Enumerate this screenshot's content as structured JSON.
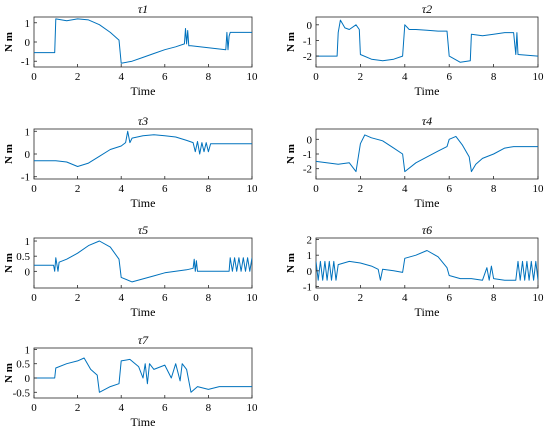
{
  "chart_data": [
    {
      "type": "line",
      "title": "τ1",
      "xlabel": "Time",
      "ylabel": "N m",
      "xlim": [
        0,
        10
      ],
      "ylim": [
        -1.3,
        1.3
      ],
      "xticks": [
        "0",
        "2",
        "4",
        "6",
        "8",
        "10"
      ],
      "yticks": [
        "-1",
        "0",
        "1"
      ],
      "series": [
        {
          "color": "#0072BD",
          "values": [
            [
              0,
              -0.55
            ],
            [
              0.95,
              -0.55
            ],
            [
              1.0,
              1.2
            ],
            [
              1.5,
              1.1
            ],
            [
              2.0,
              1.2
            ],
            [
              2.5,
              1.15
            ],
            [
              3.0,
              0.9
            ],
            [
              3.5,
              0.5
            ],
            [
              3.9,
              0.1
            ],
            [
              4.0,
              -1.1
            ],
            [
              4.5,
              -1.0
            ],
            [
              5.0,
              -0.8
            ],
            [
              5.5,
              -0.6
            ],
            [
              6.0,
              -0.4
            ],
            [
              6.5,
              -0.25
            ],
            [
              6.9,
              -0.1
            ],
            [
              6.95,
              0.7
            ],
            [
              7.0,
              -0.1
            ],
            [
              7.05,
              0.6
            ],
            [
              7.1,
              -0.2
            ],
            [
              7.2,
              -0.2
            ],
            [
              8.0,
              -0.3
            ],
            [
              8.8,
              -0.4
            ],
            [
              8.85,
              0.5
            ],
            [
              8.9,
              -0.4
            ],
            [
              8.95,
              0.3
            ],
            [
              9.0,
              0.5
            ],
            [
              10,
              0.5
            ]
          ]
        }
      ]
    },
    {
      "type": "line",
      "title": "τ2",
      "xlabel": "Time",
      "ylabel": "N m",
      "xlim": [
        0,
        10
      ],
      "ylim": [
        -2.7,
        0.5
      ],
      "xticks": [
        "0",
        "2",
        "4",
        "6",
        "8",
        "10"
      ],
      "yticks": [
        "-2",
        "-1",
        "0"
      ],
      "series": [
        {
          "color": "#0072BD",
          "values": [
            [
              0,
              -2.0
            ],
            [
              0.95,
              -2.0
            ],
            [
              1.0,
              -0.5
            ],
            [
              1.1,
              0.3
            ],
            [
              1.3,
              -0.2
            ],
            [
              1.5,
              -0.3
            ],
            [
              1.8,
              0.0
            ],
            [
              1.95,
              -0.3
            ],
            [
              2.0,
              -1.9
            ],
            [
              2.5,
              -2.2
            ],
            [
              3.0,
              -2.3
            ],
            [
              3.5,
              -2.2
            ],
            [
              3.9,
              -2.0
            ],
            [
              4.0,
              0.0
            ],
            [
              4.2,
              -0.3
            ],
            [
              4.5,
              -0.3
            ],
            [
              5.0,
              -0.35
            ],
            [
              5.5,
              -0.4
            ],
            [
              5.9,
              -0.4
            ],
            [
              6.0,
              -2.0
            ],
            [
              6.5,
              -2.4
            ],
            [
              6.95,
              -2.3
            ],
            [
              7.0,
              -0.6
            ],
            [
              7.5,
              -0.7
            ],
            [
              8.0,
              -0.6
            ],
            [
              8.5,
              -0.5
            ],
            [
              8.9,
              -0.5
            ],
            [
              9.0,
              -1.9
            ],
            [
              9.05,
              -0.5
            ],
            [
              9.1,
              -1.9
            ],
            [
              10,
              -2.0
            ]
          ]
        }
      ]
    },
    {
      "type": "line",
      "title": "τ3",
      "xlabel": "Time",
      "ylabel": "N m",
      "xlim": [
        0,
        10
      ],
      "ylim": [
        -1.1,
        1.1
      ],
      "xticks": [
        "0",
        "2",
        "4",
        "6",
        "8",
        "10"
      ],
      "yticks": [
        "-1",
        "0",
        "1"
      ],
      "series": [
        {
          "color": "#0072BD",
          "values": [
            [
              0,
              -0.3
            ],
            [
              1.0,
              -0.3
            ],
            [
              1.5,
              -0.35
            ],
            [
              2.0,
              -0.55
            ],
            [
              2.5,
              -0.4
            ],
            [
              3.0,
              -0.1
            ],
            [
              3.5,
              0.2
            ],
            [
              4.0,
              0.35
            ],
            [
              4.2,
              0.5
            ],
            [
              4.3,
              1.0
            ],
            [
              4.4,
              0.5
            ],
            [
              4.5,
              0.7
            ],
            [
              5.0,
              0.8
            ],
            [
              5.5,
              0.85
            ],
            [
              6.0,
              0.8
            ],
            [
              6.5,
              0.75
            ],
            [
              7.0,
              0.6
            ],
            [
              7.3,
              0.5
            ],
            [
              7.4,
              0.1
            ],
            [
              7.5,
              0.55
            ],
            [
              7.6,
              0.0
            ],
            [
              7.7,
              0.5
            ],
            [
              7.8,
              0.1
            ],
            [
              7.9,
              0.5
            ],
            [
              8.0,
              0.1
            ],
            [
              8.1,
              0.45
            ],
            [
              8.5,
              0.45
            ],
            [
              10,
              0.45
            ]
          ]
        }
      ]
    },
    {
      "type": "line",
      "title": "τ4",
      "xlabel": "Time",
      "ylabel": "N m",
      "xlim": [
        0,
        10
      ],
      "ylim": [
        -2.7,
        0.7
      ],
      "xticks": [
        "0",
        "2",
        "4",
        "6",
        "8",
        "10"
      ],
      "yticks": [
        "-2",
        "-1",
        "0"
      ],
      "series": [
        {
          "color": "#0072BD",
          "values": [
            [
              0,
              -1.5
            ],
            [
              1.0,
              -1.7
            ],
            [
              1.5,
              -1.6
            ],
            [
              1.8,
              -2.2
            ],
            [
              2.0,
              -0.3
            ],
            [
              2.2,
              0.3
            ],
            [
              2.5,
              0.1
            ],
            [
              3.0,
              -0.1
            ],
            [
              3.5,
              -0.6
            ],
            [
              3.9,
              -1.0
            ],
            [
              4.0,
              -2.2
            ],
            [
              4.5,
              -1.6
            ],
            [
              5.0,
              -1.2
            ],
            [
              5.5,
              -0.8
            ],
            [
              5.9,
              -0.5
            ],
            [
              6.0,
              0.0
            ],
            [
              6.3,
              0.2
            ],
            [
              6.6,
              -0.4
            ],
            [
              6.9,
              -1.2
            ],
            [
              7.0,
              -2.2
            ],
            [
              7.2,
              -1.7
            ],
            [
              7.5,
              -1.3
            ],
            [
              8.0,
              -1.0
            ],
            [
              8.5,
              -0.6
            ],
            [
              8.9,
              -0.5
            ],
            [
              9.0,
              -0.5
            ],
            [
              10,
              -0.5
            ]
          ]
        }
      ]
    },
    {
      "type": "line",
      "title": "τ5",
      "xlabel": "Time",
      "ylabel": "N m",
      "xlim": [
        0,
        10
      ],
      "ylim": [
        -0.55,
        1.1
      ],
      "xticks": [
        "0",
        "2",
        "4",
        "6",
        "8",
        "10"
      ],
      "yticks": [
        "0",
        "0.5",
        "1"
      ],
      "series": [
        {
          "color": "#0072BD",
          "values": [
            [
              0,
              0.2
            ],
            [
              0.9,
              0.2
            ],
            [
              0.95,
              0.0
            ],
            [
              1.0,
              0.45
            ],
            [
              1.1,
              0.0
            ],
            [
              1.15,
              0.3
            ],
            [
              1.5,
              0.4
            ],
            [
              2.0,
              0.6
            ],
            [
              2.5,
              0.85
            ],
            [
              3.0,
              1.0
            ],
            [
              3.5,
              0.8
            ],
            [
              3.9,
              0.4
            ],
            [
              4.0,
              -0.2
            ],
            [
              4.5,
              -0.35
            ],
            [
              5.0,
              -0.25
            ],
            [
              5.5,
              -0.15
            ],
            [
              6.0,
              -0.05
            ],
            [
              6.5,
              0.0
            ],
            [
              7.0,
              0.05
            ],
            [
              7.3,
              0.1
            ],
            [
              7.35,
              0.4
            ],
            [
              7.4,
              0.0
            ],
            [
              7.45,
              0.35
            ],
            [
              7.5,
              0.0
            ],
            [
              8.0,
              0.0
            ],
            [
              8.5,
              0.0
            ],
            [
              8.95,
              0.0
            ],
            [
              9.0,
              0.45
            ],
            [
              9.1,
              0.0
            ],
            [
              9.2,
              0.45
            ],
            [
              9.3,
              0.0
            ],
            [
              9.4,
              0.45
            ],
            [
              9.5,
              0.0
            ],
            [
              9.6,
              0.45
            ],
            [
              9.7,
              0.0
            ],
            [
              9.8,
              0.45
            ],
            [
              9.9,
              0.0
            ],
            [
              10,
              0.45
            ]
          ]
        }
      ]
    },
    {
      "type": "line",
      "title": "τ6",
      "xlabel": "Time",
      "ylabel": "N m",
      "xlim": [
        0,
        10
      ],
      "ylim": [
        -1.1,
        2.1
      ],
      "xticks": [
        "0",
        "2",
        "4",
        "6",
        "8",
        "10"
      ],
      "yticks": [
        "-1",
        "0",
        "1",
        "2"
      ],
      "series": [
        {
          "color": "#0072BD",
          "values": [
            [
              0,
              0.6
            ],
            [
              0.1,
              -0.6
            ],
            [
              0.2,
              0.6
            ],
            [
              0.3,
              -0.6
            ],
            [
              0.4,
              0.6
            ],
            [
              0.5,
              -0.6
            ],
            [
              0.6,
              0.6
            ],
            [
              0.7,
              -0.6
            ],
            [
              0.8,
              0.6
            ],
            [
              0.9,
              -0.6
            ],
            [
              1.0,
              0.4
            ],
            [
              1.5,
              0.6
            ],
            [
              2.0,
              0.5
            ],
            [
              2.5,
              0.3
            ],
            [
              2.8,
              0.1
            ],
            [
              2.9,
              -0.6
            ],
            [
              3.0,
              0.1
            ],
            [
              3.5,
              0.0
            ],
            [
              3.9,
              -0.1
            ],
            [
              4.0,
              0.8
            ],
            [
              4.5,
              1.0
            ],
            [
              5.0,
              1.3
            ],
            [
              5.5,
              0.9
            ],
            [
              5.9,
              0.2
            ],
            [
              6.0,
              -0.3
            ],
            [
              6.5,
              -0.5
            ],
            [
              7.0,
              -0.5
            ],
            [
              7.5,
              -0.6
            ],
            [
              7.7,
              0.2
            ],
            [
              7.8,
              -0.6
            ],
            [
              7.9,
              0.3
            ],
            [
              8.0,
              -0.5
            ],
            [
              8.5,
              -0.6
            ],
            [
              9.0,
              -0.6
            ],
            [
              9.1,
              0.6
            ],
            [
              9.2,
              -0.6
            ],
            [
              9.3,
              0.6
            ],
            [
              9.4,
              -0.6
            ],
            [
              9.5,
              0.6
            ],
            [
              9.6,
              -0.6
            ],
            [
              9.7,
              0.6
            ],
            [
              9.8,
              -0.6
            ],
            [
              9.9,
              0.6
            ],
            [
              10,
              -0.6
            ]
          ]
        }
      ]
    },
    {
      "type": "line",
      "title": "τ7",
      "xlabel": "Time",
      "ylabel": "N m",
      "xlim": [
        0,
        10
      ],
      "ylim": [
        -0.7,
        1.05
      ],
      "xticks": [
        "0",
        "2",
        "4",
        "6",
        "8",
        "10"
      ],
      "yticks": [
        "-0.5",
        "0",
        "0.5",
        "1"
      ],
      "series": [
        {
          "color": "#0072BD",
          "values": [
            [
              0,
              0.0
            ],
            [
              0.95,
              0.0
            ],
            [
              1.0,
              0.35
            ],
            [
              1.5,
              0.5
            ],
            [
              2.0,
              0.6
            ],
            [
              2.3,
              0.7
            ],
            [
              2.6,
              0.3
            ],
            [
              2.9,
              0.1
            ],
            [
              3.0,
              -0.5
            ],
            [
              3.5,
              -0.3
            ],
            [
              3.9,
              -0.2
            ],
            [
              4.0,
              0.6
            ],
            [
              4.4,
              0.65
            ],
            [
              4.8,
              0.4
            ],
            [
              5.0,
              0.0
            ],
            [
              5.1,
              0.5
            ],
            [
              5.2,
              -0.2
            ],
            [
              5.3,
              0.5
            ],
            [
              5.5,
              0.3
            ],
            [
              6.0,
              0.45
            ],
            [
              6.3,
              0.0
            ],
            [
              6.5,
              0.5
            ],
            [
              6.7,
              -0.1
            ],
            [
              6.8,
              0.5
            ],
            [
              7.0,
              0.3
            ],
            [
              7.2,
              -0.5
            ],
            [
              7.5,
              -0.3
            ],
            [
              8.0,
              -0.4
            ],
            [
              8.5,
              -0.3
            ],
            [
              9.0,
              -0.3
            ],
            [
              10,
              -0.3
            ]
          ]
        }
      ]
    }
  ]
}
